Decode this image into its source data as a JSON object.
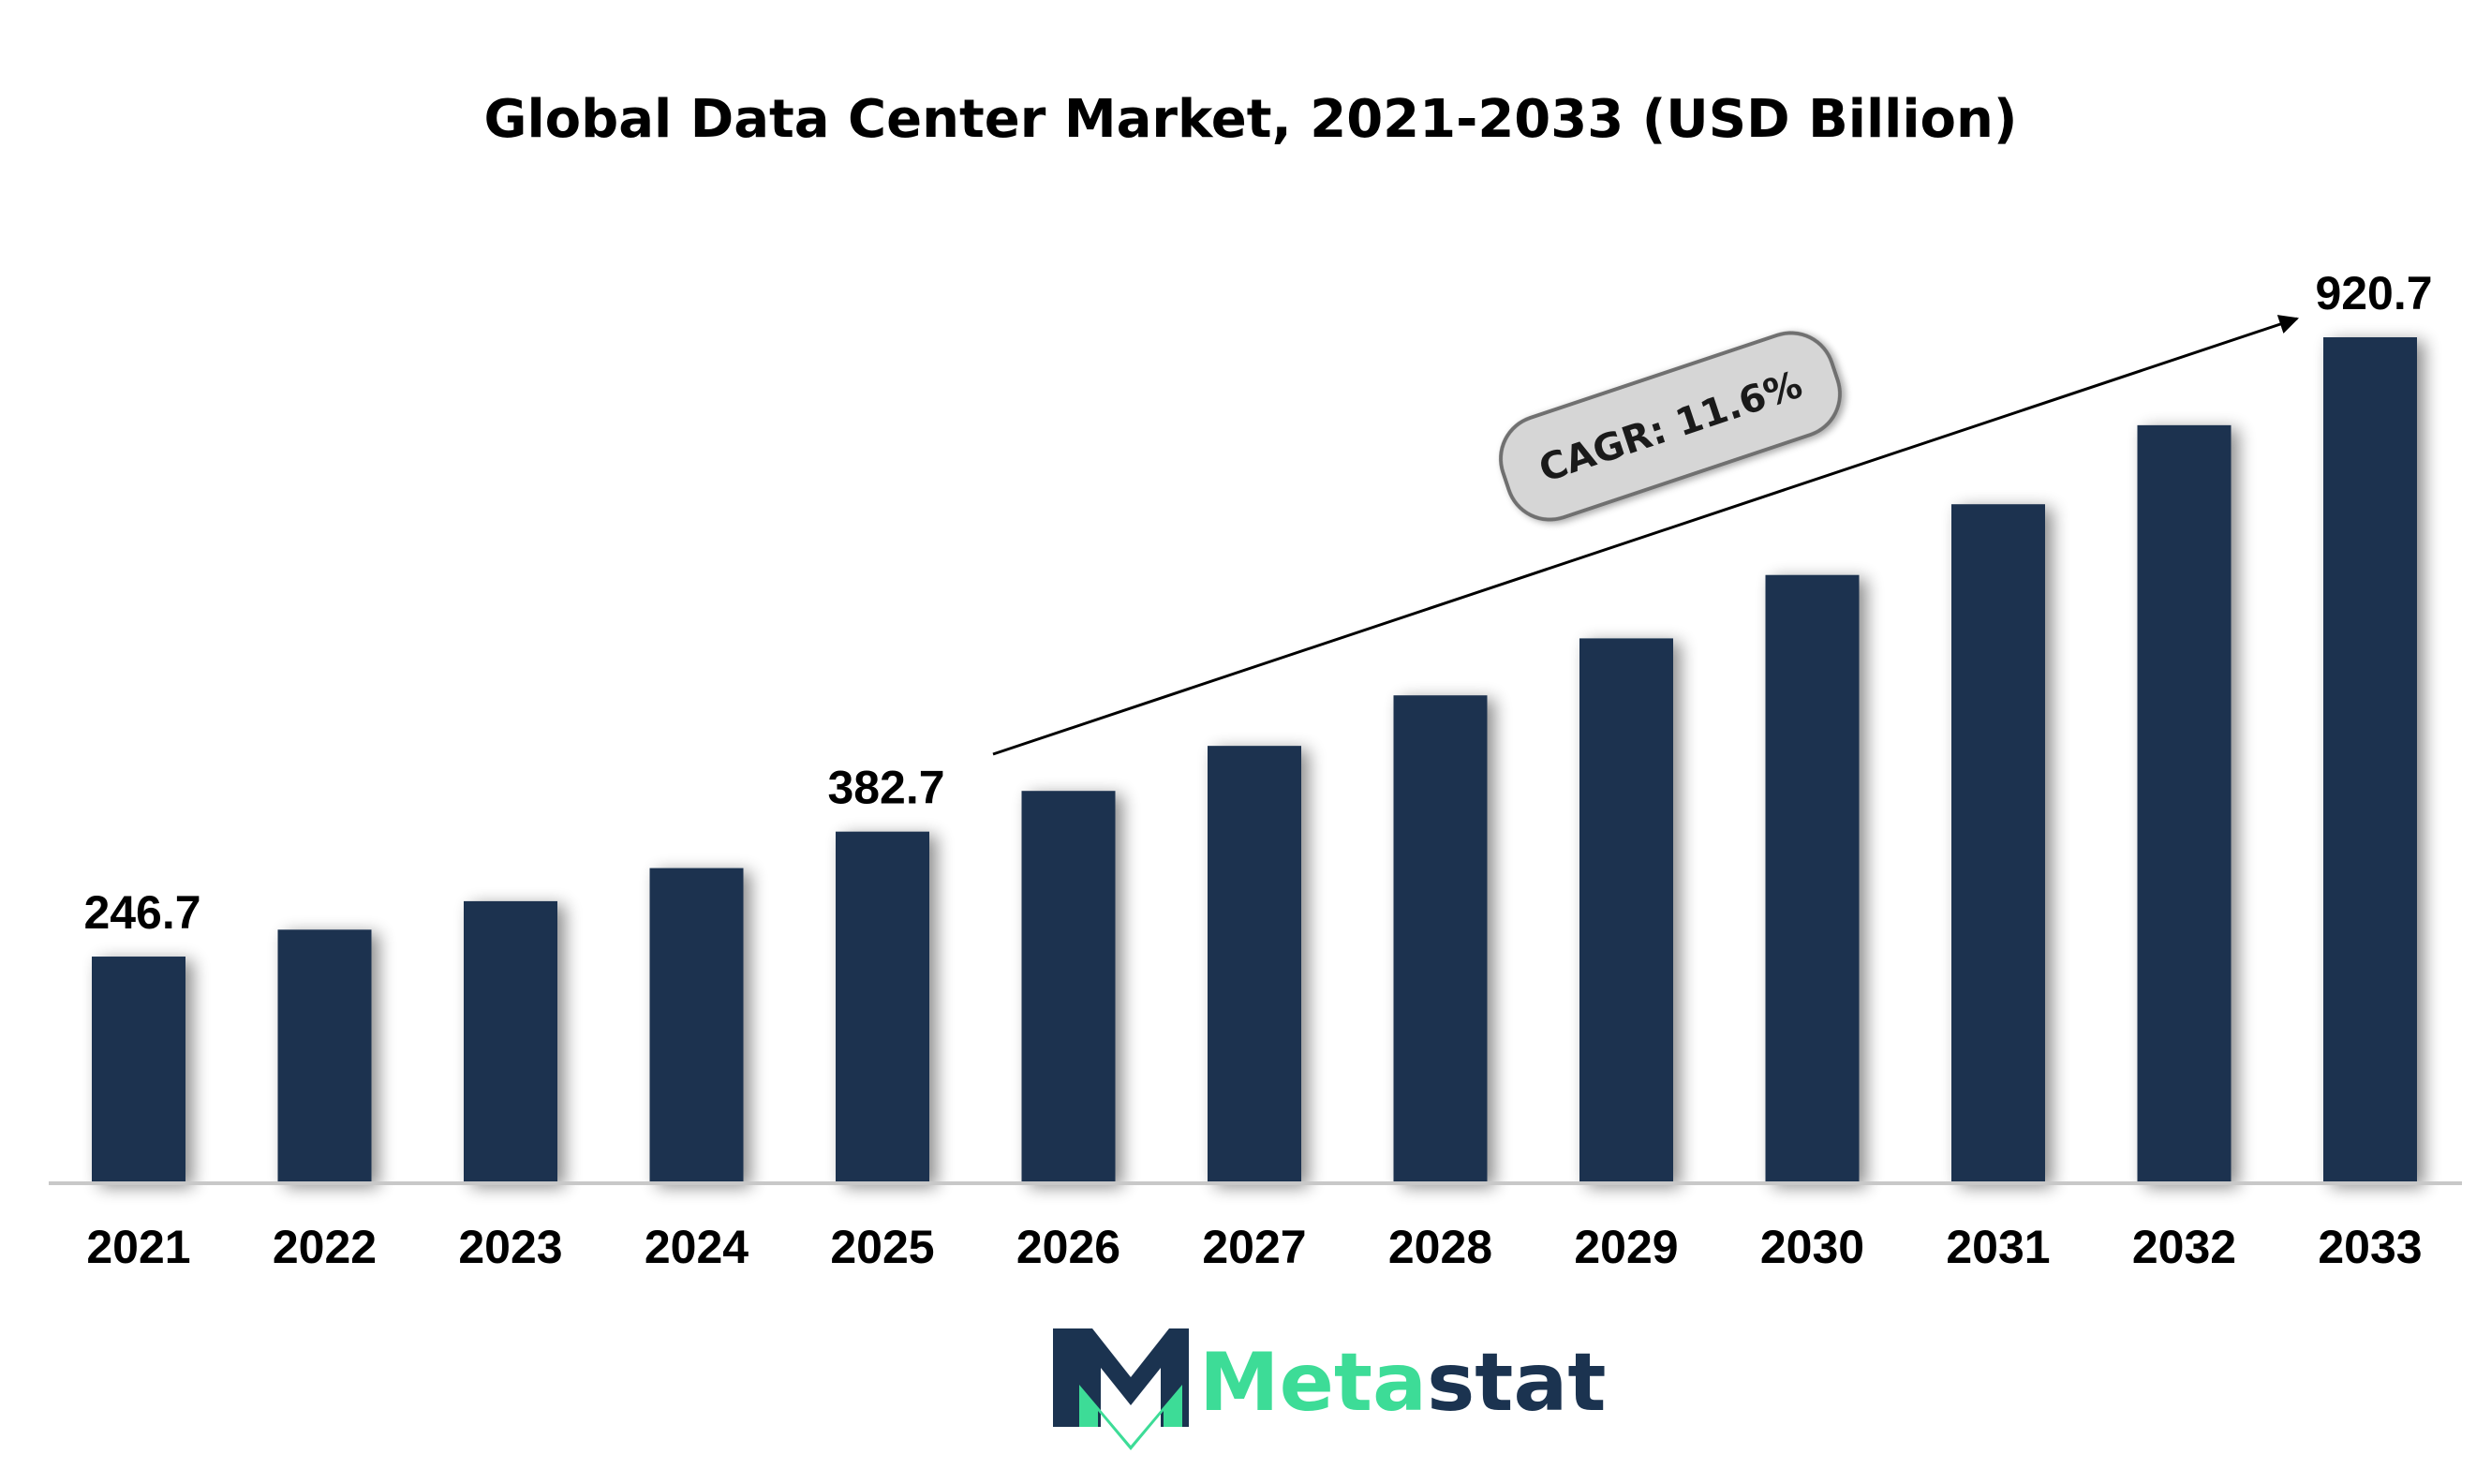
{
  "chart_data": {
    "type": "bar",
    "title": "Global Data Center Market, 2021-2033 (USD Billion)",
    "categories": [
      "2021",
      "2022",
      "2023",
      "2024",
      "2025",
      "2026",
      "2027",
      "2028",
      "2029",
      "2030",
      "2031",
      "2032",
      "2033"
    ],
    "series": [
      {
        "values": [
          246.7,
          276,
          307,
          343,
          382.7,
          427,
          476,
          531,
          593,
          662,
          739,
          825,
          920.7
        ]
      }
    ],
    "data_labels": [
      {
        "category": "2021",
        "text": "246.7"
      },
      {
        "category": "2025",
        "text": "382.7"
      },
      {
        "category": "2033",
        "text": "920.7"
      }
    ],
    "annotation": {
      "text": "CAGR: 11.6%",
      "from": "2026",
      "to": "2033"
    },
    "ylim": [
      0,
      920.7
    ],
    "grid": false,
    "legend": "none",
    "colors": {
      "bar": "#1b3350",
      "axis": "#c8c8c8",
      "arrow": "#000000",
      "pill_fill": "#d6d6d6",
      "pill_stroke": "#707070"
    }
  },
  "brand": {
    "logo_text_part1": "Meta",
    "logo_text_part2": "stat",
    "colors": {
      "dark": "#1b3350",
      "accent": "#3ddc97"
    },
    "icon": "m-logo-icon"
  }
}
